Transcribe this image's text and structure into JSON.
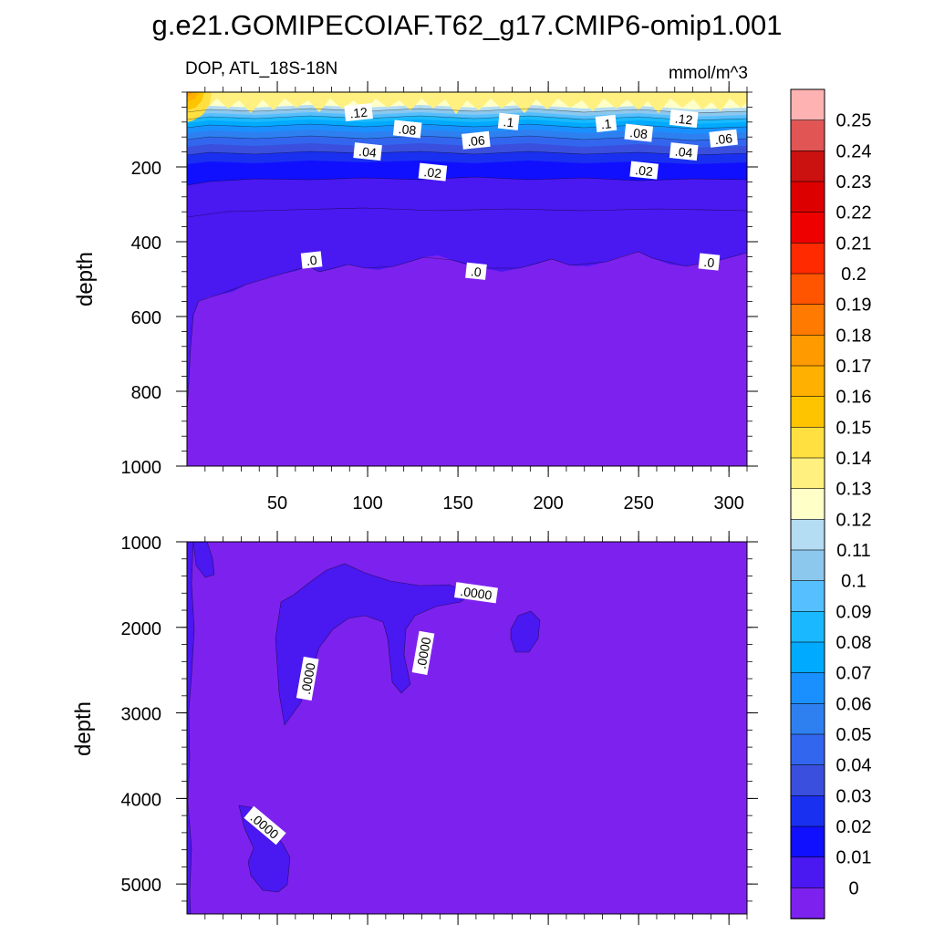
{
  "chart_data": {
    "type": "contour",
    "title": "g.e21.GOMIPECOIAF.T62_g17.CMIP6-omip1.001",
    "subtitle_left": "DOP, ATL_18S-18N",
    "subtitle_right": "mmol/m^3",
    "ylabel": "depth",
    "x_ticks": [
      "50",
      "100",
      "150",
      "200",
      "250",
      "300"
    ],
    "x_values": [
      50,
      100,
      150,
      200,
      250,
      300
    ],
    "xlim": [
      0,
      310
    ],
    "panels": [
      {
        "name": "upper",
        "ylim": [
          0,
          1000
        ],
        "y_ticks": [
          "200",
          "400",
          "600",
          "800",
          "1000"
        ],
        "y_values": [
          200,
          400,
          600,
          800,
          1000
        ],
        "contour_labels": [
          {
            "text": ".12",
            "x": 95,
            "y": 55
          },
          {
            "text": ".08",
            "x": 122,
            "y": 100
          },
          {
            "text": ".1",
            "x": 178,
            "y": 80
          },
          {
            "text": ".1",
            "x": 232,
            "y": 85
          },
          {
            "text": ".12",
            "x": 275,
            "y": 72
          },
          {
            "text": ".04",
            "x": 100,
            "y": 160
          },
          {
            "text": ".06",
            "x": 160,
            "y": 130
          },
          {
            "text": ".08",
            "x": 250,
            "y": 110
          },
          {
            "text": ".04",
            "x": 275,
            "y": 160
          },
          {
            "text": ".06",
            "x": 297,
            "y": 125
          },
          {
            "text": ".02",
            "x": 136,
            "y": 215
          },
          {
            "text": ".02",
            "x": 253,
            "y": 210
          },
          {
            "text": ".0",
            "x": 69,
            "y": 450
          },
          {
            "text": ".0",
            "x": 160,
            "y": 480
          },
          {
            "text": ".0",
            "x": 289,
            "y": 455
          }
        ]
      },
      {
        "name": "lower",
        "ylim": [
          1000,
          5350
        ],
        "y_ticks": [
          "1000",
          "2000",
          "3000",
          "4000",
          "5000"
        ],
        "y_values": [
          1000,
          2000,
          3000,
          4000,
          5000
        ],
        "contour_labels": [
          {
            "text": ".0000",
            "x": 160,
            "y": 1600
          },
          {
            "text": ".0000",
            "x": 67,
            "y": 2600
          },
          {
            "text": ".0000",
            "x": 131,
            "y": 2300
          },
          {
            "text": ".0000",
            "x": 43,
            "y": 4320
          }
        ]
      }
    ],
    "colorbar": {
      "labels": [
        "0.25",
        "0.24",
        "0.23",
        "0.22",
        "0.21",
        "0.2",
        "0.19",
        "0.18",
        "0.17",
        "0.16",
        "0.15",
        "0.14",
        "0.13",
        "0.12",
        "0.11",
        "0.1",
        "0.09",
        "0.08",
        "0.07",
        "0.06",
        "0.05",
        "0.04",
        "0.03",
        "0.02",
        "0.01",
        "0"
      ],
      "colors": [
        "#ffb2b2",
        "#e15555",
        "#cc1111",
        "#dd0000",
        "#ee0000",
        "#ff2a00",
        "#ff5500",
        "#ff7a00",
        "#ff9a00",
        "#ffb000",
        "#ffc400",
        "#ffe040",
        "#fff080",
        "#ffffc8",
        "#b4dcf2",
        "#8cc8ee",
        "#55bfff",
        "#1ab9ff",
        "#00aaff",
        "#1a90ff",
        "#2e80f0",
        "#3366ee",
        "#3a4fdd",
        "#1a30f0",
        "#1010ff",
        "#4a18f0",
        "#7d22ee"
      ]
    }
  }
}
